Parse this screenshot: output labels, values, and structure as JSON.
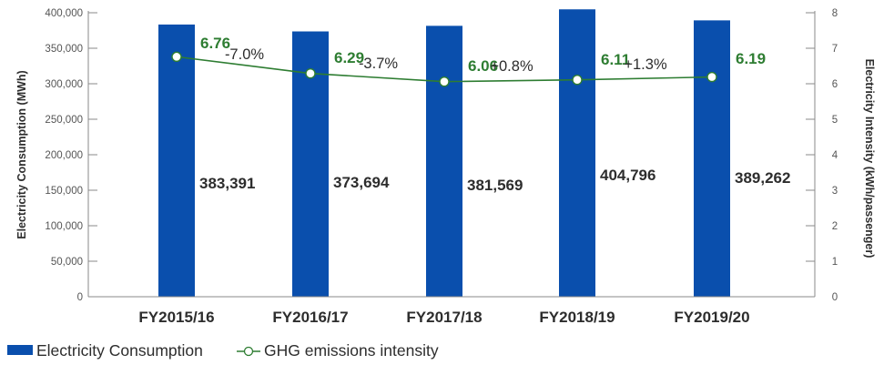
{
  "chart_data": {
    "type": "bar",
    "categories": [
      "FY2015/16",
      "FY2016/17",
      "FY2017/18",
      "FY2018/19",
      "FY2019/20"
    ],
    "series": [
      {
        "name": "Electricity Consumption",
        "type": "bar",
        "axis": "left",
        "values": [
          383391,
          373694,
          381569,
          404796,
          389262
        ],
        "labels": [
          "383,391",
          "373,694",
          "381,569",
          "404,796",
          "389,262"
        ]
      },
      {
        "name": "GHG emissions intensity",
        "type": "line",
        "axis": "right",
        "values": [
          6.76,
          6.29,
          6.06,
          6.11,
          6.19
        ],
        "labels": [
          "6.76",
          "6.29",
          "6.06",
          "6.11",
          "6.19"
        ]
      }
    ],
    "changes": [
      "-7.0%",
      "-3.7%",
      "+0.8%",
      "+1.3%"
    ],
    "ylabel": "Electricity Consumption (MWh)",
    "y2label": "Electricity Intensity (kWh/passenger)",
    "ylim": [
      0,
      400000
    ],
    "y2lim": [
      0,
      8
    ],
    "y_ticks": [
      "0",
      "50,000",
      "100,000",
      "150,000",
      "200,000",
      "250,000",
      "300,000",
      "350,000",
      "400,000"
    ],
    "y2_ticks": [
      "0",
      "1",
      "2",
      "3",
      "4",
      "5",
      "6",
      "7",
      "8"
    ],
    "grid": false,
    "legend_position": "bottom-left",
    "colors": {
      "bar": "#0a4fad",
      "line": "#2e7d32",
      "text": "#2d2d2d",
      "axis": "#555555"
    }
  }
}
